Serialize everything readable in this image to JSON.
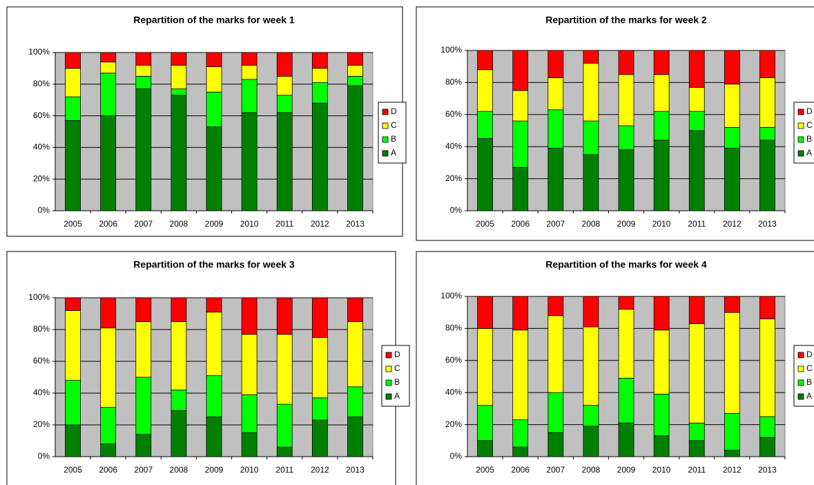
{
  "chart_data": [
    {
      "type": "stacked-bar",
      "title": "Repartition of the marks for week 1",
      "categories": [
        "2005",
        "2006",
        "2007",
        "2008",
        "2009",
        "2010",
        "2011",
        "2012",
        "2013"
      ],
      "series": [
        {
          "name": "A",
          "color": "#008000",
          "values": [
            57,
            60,
            77,
            73,
            53,
            62,
            62,
            68,
            79
          ]
        },
        {
          "name": "B",
          "color": "#00ff00",
          "values": [
            15,
            27,
            8,
            4,
            22,
            21,
            11,
            13,
            6
          ]
        },
        {
          "name": "C",
          "color": "#ffff00",
          "values": [
            18,
            7,
            7,
            15,
            16,
            9,
            12,
            9,
            7
          ]
        },
        {
          "name": "D",
          "color": "#ff0000",
          "values": [
            10,
            6,
            8,
            8,
            9,
            8,
            15,
            10,
            8
          ]
        }
      ],
      "ylim": [
        0,
        100
      ],
      "yticks": [
        {
          "value": 0,
          "label": "0%"
        },
        {
          "value": 20,
          "label": "20%"
        },
        {
          "value": 40,
          "label": "40%"
        },
        {
          "value": 60,
          "label": "60%"
        },
        {
          "value": 80,
          "label": "80%"
        },
        {
          "value": 100,
          "label": "100%"
        }
      ],
      "grid": true,
      "legend": "right"
    },
    {
      "type": "stacked-bar",
      "title": "Repartition of the marks for week 2",
      "categories": [
        "2005",
        "2006",
        "2007",
        "2008",
        "2009",
        "2010",
        "2011",
        "2012",
        "2013"
      ],
      "series": [
        {
          "name": "A",
          "color": "#008000",
          "values": [
            45,
            27,
            39,
            35,
            38,
            44,
            50,
            39,
            44
          ]
        },
        {
          "name": "B",
          "color": "#00ff00",
          "values": [
            17,
            29,
            24,
            21,
            15,
            18,
            12,
            13,
            8
          ]
        },
        {
          "name": "C",
          "color": "#ffff00",
          "values": [
            26,
            19,
            20,
            36,
            32,
            23,
            15,
            27,
            31
          ]
        },
        {
          "name": "D",
          "color": "#ff0000",
          "values": [
            12,
            25,
            17,
            8,
            15,
            15,
            23,
            21,
            17
          ]
        }
      ],
      "ylim": [
        0,
        100
      ],
      "yticks": [
        {
          "value": 0,
          "label": "0%"
        },
        {
          "value": 20,
          "label": "20%"
        },
        {
          "value": 40,
          "label": "40%"
        },
        {
          "value": 60,
          "label": "60%"
        },
        {
          "value": 80,
          "label": "80%"
        },
        {
          "value": 100,
          "label": "100%"
        }
      ],
      "grid": true,
      "legend": "right"
    },
    {
      "type": "stacked-bar",
      "title": "Repartition of the marks for week 3",
      "categories": [
        "2005",
        "2006",
        "2007",
        "2008",
        "2009",
        "2010",
        "2011",
        "2012",
        "2013"
      ],
      "series": [
        {
          "name": "A",
          "color": "#008000",
          "values": [
            20,
            8,
            14,
            29,
            25,
            15,
            6,
            23,
            25
          ]
        },
        {
          "name": "B",
          "color": "#00ff00",
          "values": [
            28,
            23,
            36,
            13,
            26,
            24,
            27,
            14,
            19
          ]
        },
        {
          "name": "C",
          "color": "#ffff00",
          "values": [
            44,
            50,
            35,
            43,
            40,
            38,
            44,
            38,
            41
          ]
        },
        {
          "name": "D",
          "color": "#ff0000",
          "values": [
            8,
            19,
            15,
            15,
            9,
            23,
            23,
            25,
            15
          ]
        }
      ],
      "ylim": [
        0,
        100
      ],
      "yticks": [
        {
          "value": 0,
          "label": "0%"
        },
        {
          "value": 20,
          "label": "20%"
        },
        {
          "value": 40,
          "label": "40%"
        },
        {
          "value": 60,
          "label": "60%"
        },
        {
          "value": 80,
          "label": "80%"
        },
        {
          "value": 100,
          "label": "100%"
        }
      ],
      "grid": true,
      "legend": "right"
    },
    {
      "type": "stacked-bar",
      "title": "Repartition of the marks for week 4",
      "categories": [
        "2005",
        "2006",
        "2007",
        "2008",
        "2009",
        "2010",
        "2011",
        "2012",
        "2013"
      ],
      "series": [
        {
          "name": "A",
          "color": "#008000",
          "values": [
            10,
            6,
            15,
            19,
            21,
            13,
            10,
            4,
            12
          ]
        },
        {
          "name": "B",
          "color": "#00ff00",
          "values": [
            22,
            17,
            25,
            13,
            28,
            26,
            11,
            23,
            13
          ]
        },
        {
          "name": "C",
          "color": "#ffff00",
          "values": [
            48,
            56,
            48,
            49,
            43,
            40,
            62,
            63,
            61
          ]
        },
        {
          "name": "D",
          "color": "#ff0000",
          "values": [
            20,
            21,
            12,
            19,
            8,
            21,
            17,
            10,
            14
          ]
        }
      ],
      "ylim": [
        0,
        100
      ],
      "yticks": [
        {
          "value": 0,
          "label": "0%"
        },
        {
          "value": 20,
          "label": "20%"
        },
        {
          "value": 40,
          "label": "40%"
        },
        {
          "value": 60,
          "label": "60%"
        },
        {
          "value": 80,
          "label": "80%"
        },
        {
          "value": 100,
          "label": "100%"
        }
      ],
      "grid": true,
      "legend": "right"
    }
  ]
}
